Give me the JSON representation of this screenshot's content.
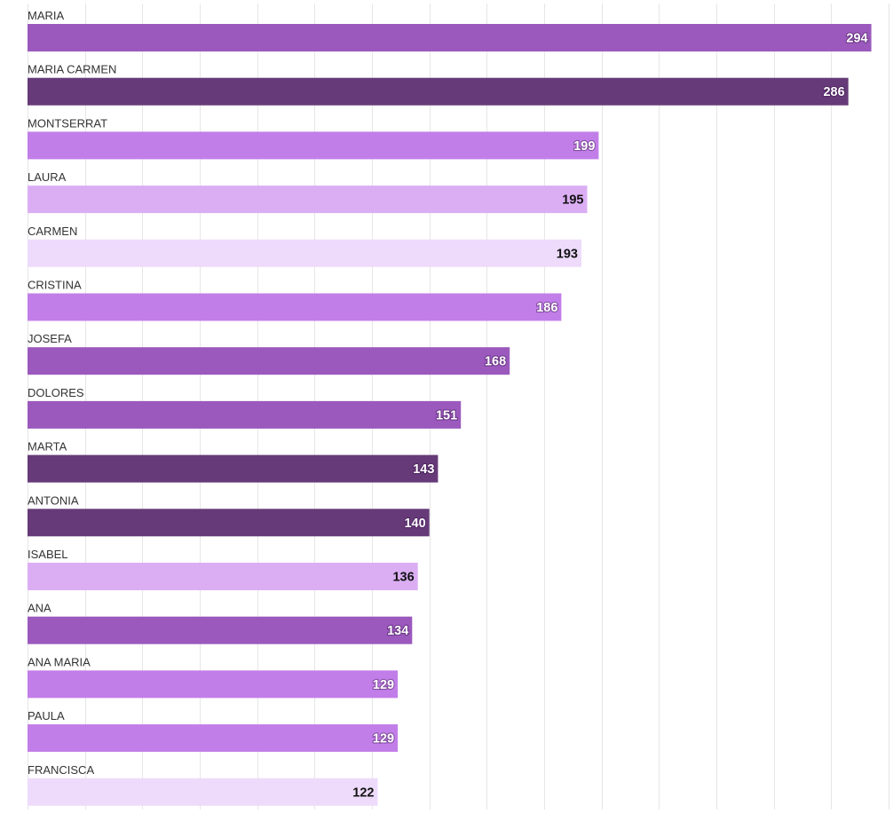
{
  "chart_data": {
    "type": "bar",
    "orientation": "horizontal",
    "categories": [
      "MARIA",
      "MARIA CARMEN",
      "MONTSERRAT",
      "LAURA",
      "CARMEN",
      "CRISTINA",
      "JOSEFA",
      "DOLORES",
      "MARTA",
      "ANTONIA",
      "ISABEL",
      "ANA",
      "ANA MARIA",
      "PAULA",
      "FRANCISCA"
    ],
    "values": [
      294,
      286,
      199,
      195,
      193,
      186,
      168,
      151,
      143,
      140,
      136,
      134,
      129,
      129,
      122
    ],
    "bar_colors": [
      "#9b59bd",
      "#663a78",
      "#c27ee8",
      "#dbaef4",
      "#eedbfb",
      "#c27ee8",
      "#9b59bd",
      "#9b59bd",
      "#663a78",
      "#663a78",
      "#dbaef4",
      "#9b59bd",
      "#c27ee8",
      "#c27ee8",
      "#eedbfb"
    ],
    "label_colors": [
      "#ffffff",
      "#ffffff",
      "#ffffff",
      "#111111",
      "#111111",
      "#ffffff",
      "#ffffff",
      "#ffffff",
      "#ffffff",
      "#ffffff",
      "#111111",
      "#ffffff",
      "#ffffff",
      "#ffffff",
      "#111111"
    ],
    "xlim": [
      0,
      300
    ],
    "grid": true,
    "gridline_color": "#e6e6e6",
    "title": "",
    "xlabel": "",
    "ylabel": ""
  }
}
